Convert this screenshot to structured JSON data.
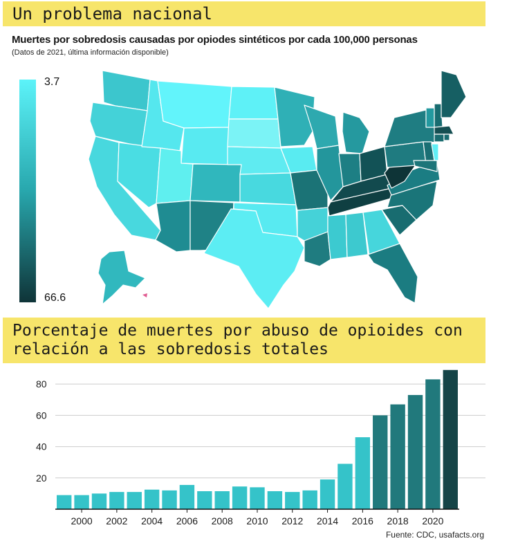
{
  "header": {
    "title": "Un problema nacional",
    "subtitle": "Muertes por sobredosis causadas por opiodes sintéticos por cada 100,000 personas",
    "note": "(Datos de 2021, última información disponible)"
  },
  "legend": {
    "max_label": "3.7",
    "min_label": "66.6",
    "color_light": "#5cf3f9",
    "color_dark": "#0f3438"
  },
  "colors": {
    "banner": "#f7e56b",
    "bar_light": "#35c3c9",
    "bar_mid": "#21797c",
    "bar_dark": "#154447",
    "grid": "#cccccc"
  },
  "section2": {
    "title": "Porcentaje de muertes por abuso de opioides con\nrelación a las sobredosis totales"
  },
  "chart_data": {
    "type": "bar",
    "categories": [
      1999,
      2000,
      2001,
      2002,
      2003,
      2004,
      2005,
      2006,
      2007,
      2008,
      2009,
      2010,
      2011,
      2012,
      2013,
      2014,
      2015,
      2016,
      2017,
      2018,
      2019,
      2020,
      2021
    ],
    "values": [
      9,
      9,
      10,
      11,
      11,
      12.5,
      12,
      15.5,
      11.5,
      11.5,
      14.5,
      14,
      11.5,
      11,
      12,
      19,
      29,
      46,
      60,
      67,
      73,
      83,
      89
    ],
    "xtick_labels": [
      "2000",
      "2002",
      "2004",
      "2006",
      "2008",
      "2010",
      "2012",
      "2014",
      "2016",
      "2018",
      "2020"
    ],
    "yticks": [
      20,
      40,
      60,
      80
    ],
    "ylim": [
      0,
      92
    ],
    "xlabel": "",
    "ylabel": ""
  },
  "source": "Fuente: CDC, usafacts.org"
}
